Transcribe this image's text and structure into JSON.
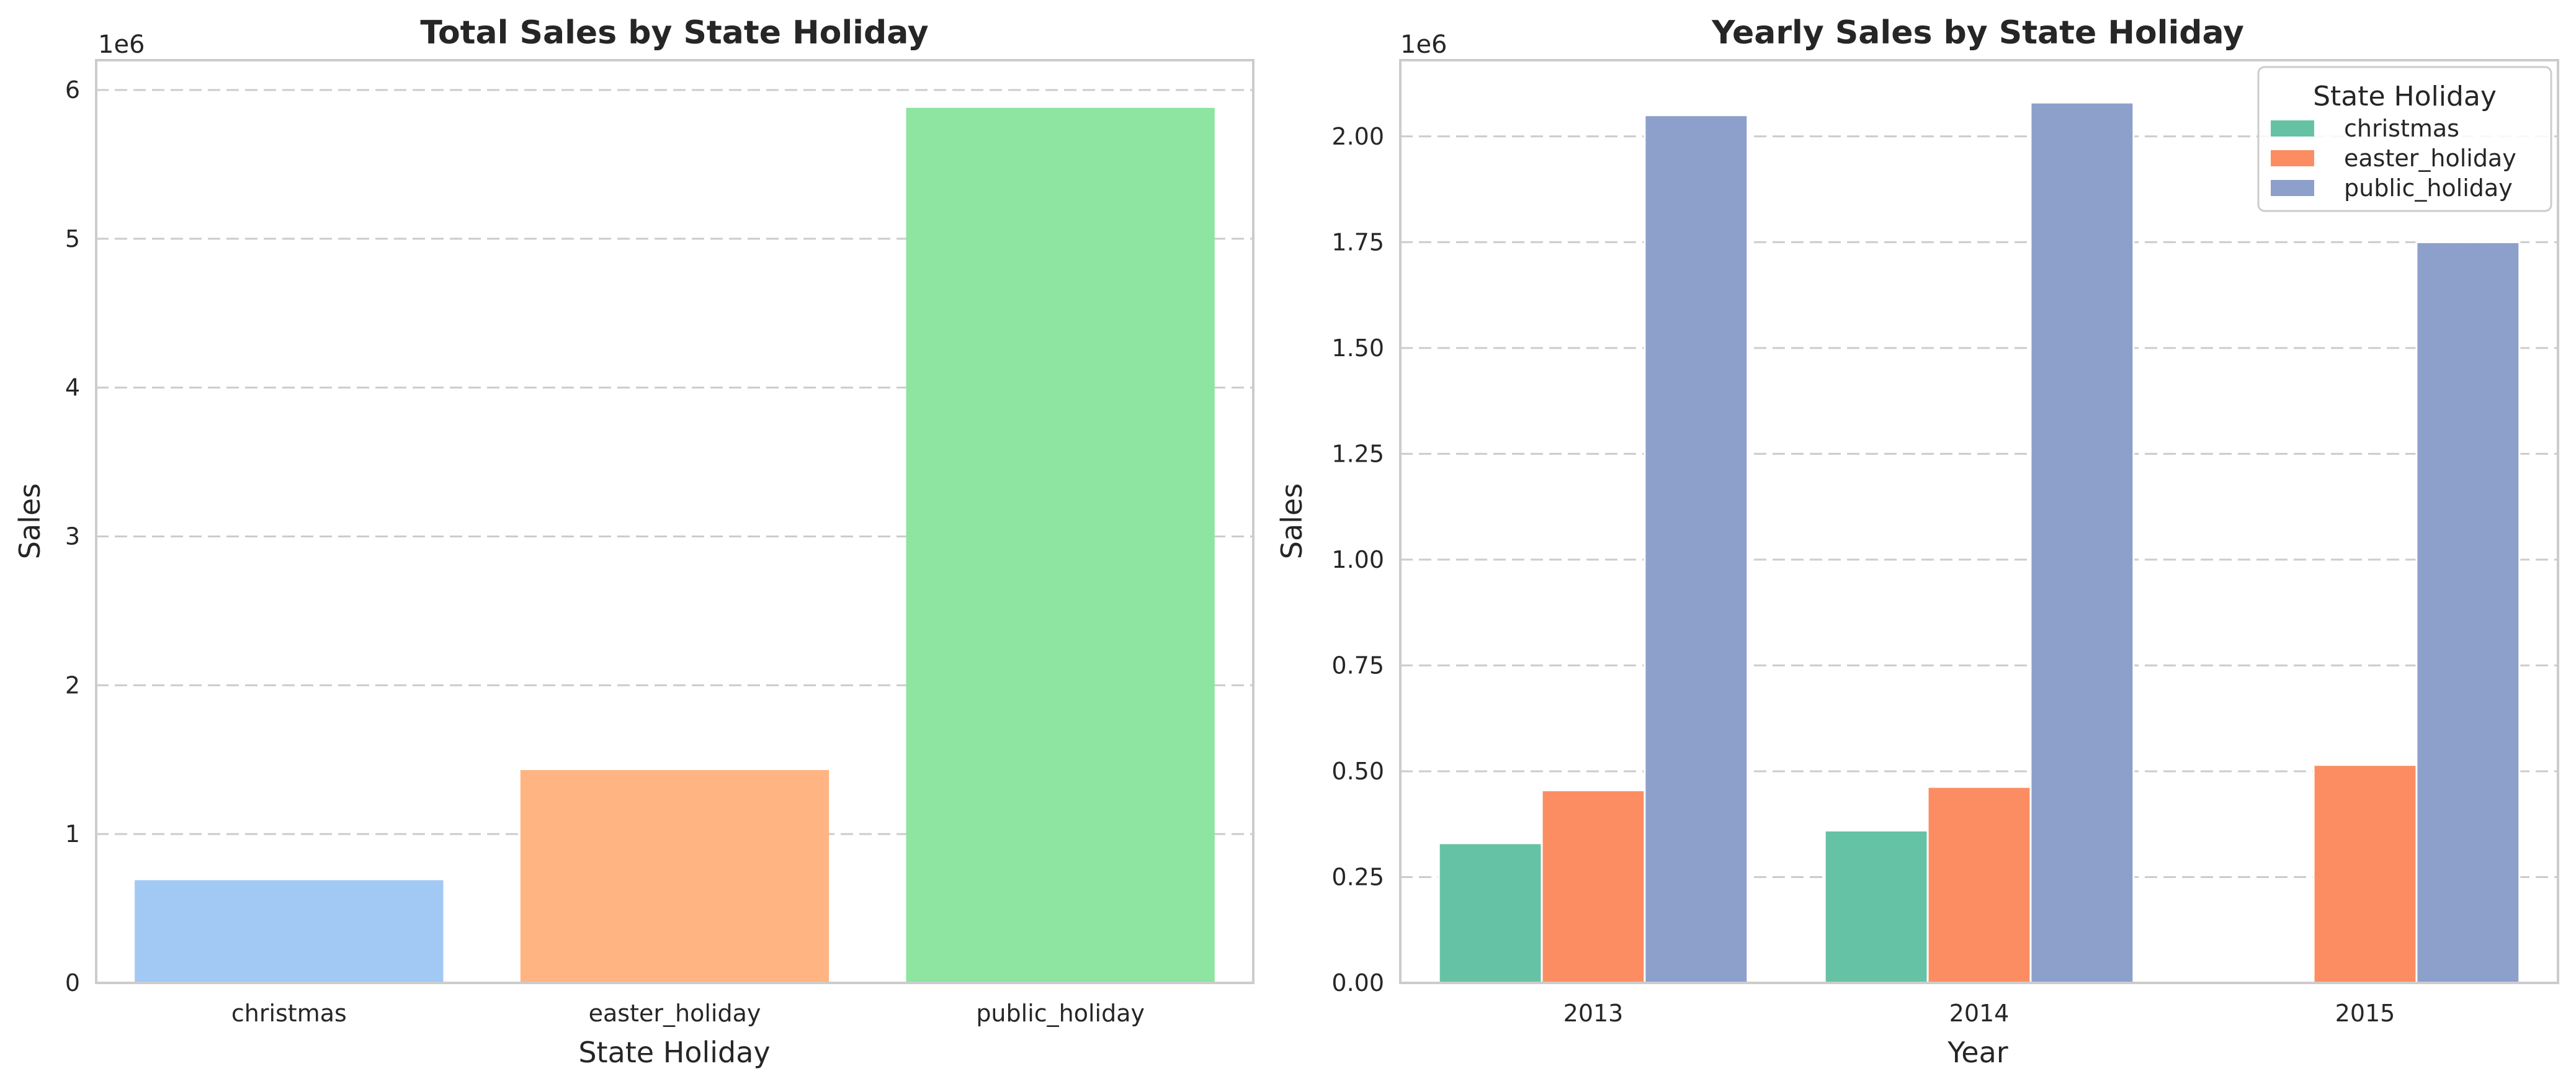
{
  "chart_data": [
    {
      "type": "bar",
      "title": "Total Sales by State Holiday",
      "xlabel": "State Holiday",
      "ylabel": "Sales",
      "y_offset_label": "1e6",
      "categories": [
        "christmas",
        "easter_holiday",
        "public_holiday"
      ],
      "values": [
        690000,
        1430000,
        5880000
      ],
      "colors": [
        "#a1c9f4",
        "#ffb482",
        "#8de5a1"
      ],
      "ylim": [
        0,
        6200000
      ],
      "yticks": [
        0,
        1000000,
        2000000,
        3000000,
        4000000,
        5000000,
        6000000
      ],
      "ytick_labels": [
        "0",
        "1",
        "2",
        "3",
        "4",
        "5",
        "6"
      ],
      "grid": true
    },
    {
      "type": "bar",
      "title": "Yearly Sales by State Holiday",
      "xlabel": "Year",
      "ylabel": "Sales",
      "y_offset_label": "1e6",
      "categories": [
        "2013",
        "2014",
        "2015"
      ],
      "series": [
        {
          "name": "christmas",
          "values": [
            330000,
            360000,
            0
          ],
          "color": "#66c2a5"
        },
        {
          "name": "easter_holiday",
          "values": [
            455000,
            463000,
            515000
          ],
          "color": "#fc8d62"
        },
        {
          "name": "public_holiday",
          "values": [
            2050000,
            2080000,
            1750000
          ],
          "color": "#8da0cb"
        }
      ],
      "ylim": [
        0,
        2180000
      ],
      "yticks": [
        0,
        250000,
        500000,
        750000,
        1000000,
        1250000,
        1500000,
        1750000,
        2000000
      ],
      "ytick_labels": [
        "0.00",
        "0.25",
        "0.50",
        "0.75",
        "1.00",
        "1.25",
        "1.50",
        "1.75",
        "2.00"
      ],
      "legend": {
        "title": "State Holiday",
        "placement": "top-right"
      },
      "grid": true
    }
  ]
}
